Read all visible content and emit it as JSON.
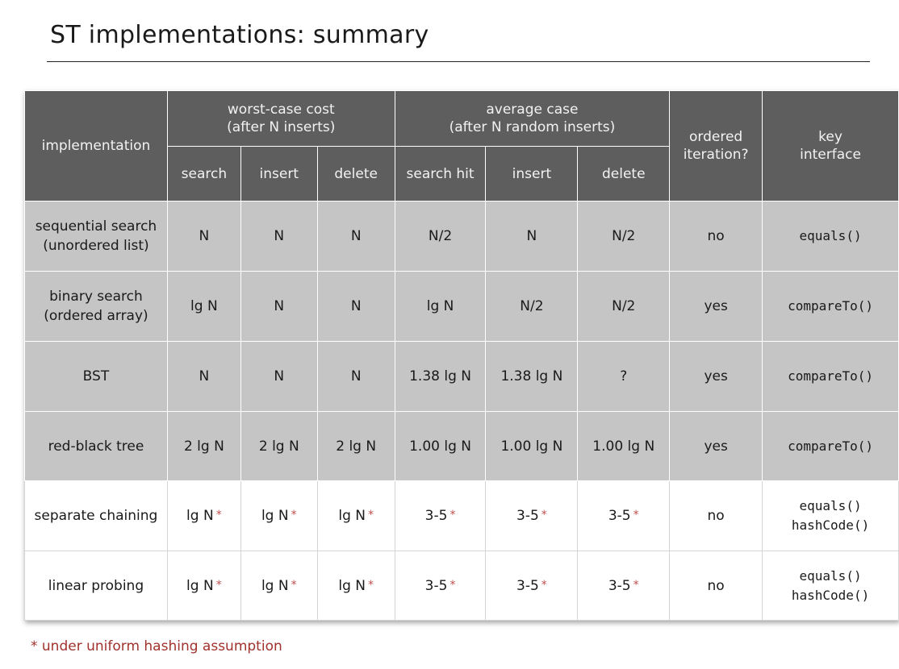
{
  "title": "ST implementations:  summary",
  "header": {
    "implementation": "implementation",
    "worst_group": [
      "worst-case cost",
      "(after N inserts)"
    ],
    "avg_group": [
      "average case",
      "(after N random inserts)"
    ],
    "ordered": [
      "ordered",
      "iteration?"
    ],
    "key": [
      "key",
      "interface"
    ],
    "sub": [
      "search",
      "insert",
      "delete",
      "search hit",
      "insert",
      "delete"
    ]
  },
  "rows": [
    {
      "name": [
        "sequential search",
        "(unordered list)"
      ],
      "cells": [
        "N",
        "N",
        "N",
        "N/2",
        "N",
        "N/2"
      ],
      "ordered": "no",
      "key": [
        "equals()"
      ]
    },
    {
      "name": [
        "binary search",
        "(ordered array)"
      ],
      "cells": [
        "lg N",
        "N",
        "N",
        "lg N",
        "N/2",
        "N/2"
      ],
      "ordered": "yes",
      "key": [
        "compareTo()"
      ]
    },
    {
      "name": [
        "BST"
      ],
      "cells": [
        "N",
        "N",
        "N",
        "1.38 lg N",
        "1.38 lg N",
        "?"
      ],
      "ordered": "yes",
      "key": [
        "compareTo()"
      ]
    },
    {
      "name": [
        "red-black tree"
      ],
      "cells": [
        "2 lg N",
        "2 lg N",
        "2 lg N",
        "1.00 lg N",
        "1.00 lg N",
        "1.00 lg N"
      ],
      "ordered": "yes",
      "key": [
        "compareTo()"
      ]
    },
    {
      "name": [
        "separate chaining"
      ],
      "cells": [
        "lg N",
        "lg N",
        "lg N",
        "3-5",
        "3-5",
        "3-5"
      ],
      "ordered": "no",
      "key": [
        "equals()",
        "hashCode()"
      ]
    },
    {
      "name": [
        "linear probing"
      ],
      "cells": [
        "lg N",
        "lg N",
        "lg N",
        "3-5",
        "3-5",
        "3-5"
      ],
      "ordered": "no",
      "key": [
        "equals()",
        "hashCode()"
      ]
    }
  ],
  "star_mark": "*",
  "footnote": "*  under uniform hashing assumption",
  "colors": {
    "header_bg": "#5e5e5e",
    "gray_row": "#c5c5c5",
    "accent_red": "#c0504d"
  }
}
